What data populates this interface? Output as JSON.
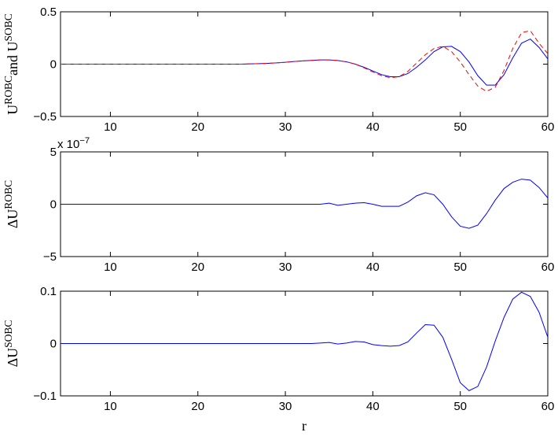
{
  "chart_data": [
    {
      "type": "line",
      "ylabel": [
        {
          "text": "U"
        },
        {
          "text": "ROBC",
          "sup": true
        },
        {
          "text": "and U"
        },
        {
          "text": "SOBC",
          "sup": true
        }
      ],
      "x": [
        4,
        5,
        6,
        7,
        8,
        9,
        10,
        11,
        12,
        13,
        14,
        15,
        16,
        17,
        18,
        19,
        20,
        21,
        22,
        23,
        24,
        25,
        26,
        27,
        28,
        29,
        30,
        31,
        32,
        33,
        34,
        35,
        36,
        37,
        38,
        39,
        40,
        41,
        42,
        43,
        44,
        45,
        46,
        47,
        48,
        49,
        50,
        51,
        52,
        53,
        54,
        55,
        56,
        57,
        58,
        59,
        60
      ],
      "series": [
        {
          "color": "#0000ff",
          "dash": false,
          "values": [
            0,
            0,
            0,
            0,
            0,
            0,
            0,
            0,
            0,
            0,
            0,
            0,
            0,
            0,
            0,
            0,
            0,
            0,
            0,
            0,
            0,
            0,
            0.003,
            0.005,
            0.008,
            0.012,
            0.018,
            0.025,
            0.031,
            0.036,
            0.04,
            0.04,
            0.035,
            0.022,
            0,
            -0.03,
            -0.065,
            -0.1,
            -0.12,
            -0.12,
            -0.09,
            -0.03,
            0.04,
            0.12,
            0.165,
            0.17,
            0.12,
            0.02,
            -0.11,
            -0.2,
            -0.2,
            -0.1,
            0.06,
            0.2,
            0.24,
            0.16,
            0.05
          ]
        },
        {
          "color": "#ff0000",
          "dash": true,
          "values": [
            0,
            0,
            0,
            0,
            0,
            0,
            0,
            0,
            0,
            0,
            0,
            0,
            0,
            0,
            0,
            0,
            0,
            0,
            0,
            0,
            0,
            0,
            0.003,
            0.005,
            0.008,
            0.012,
            0.018,
            0.025,
            0.031,
            0.036,
            0.04,
            0.04,
            0.035,
            0.022,
            0,
            -0.035,
            -0.075,
            -0.11,
            -0.13,
            -0.12,
            -0.07,
            0.01,
            0.09,
            0.15,
            0.17,
            0.12,
            0.02,
            -0.1,
            -0.21,
            -0.26,
            -0.22,
            -0.06,
            0.15,
            0.3,
            0.32,
            0.2,
            0.1
          ]
        }
      ],
      "xlim": [
        4.3,
        60
      ],
      "xticks": [
        10,
        20,
        30,
        40,
        50,
        60
      ],
      "ylim": [
        -0.5,
        0.5
      ],
      "yticks": [
        {
          "value": -0.5,
          "label": "−0.5"
        },
        0,
        0.5
      ]
    },
    {
      "type": "line",
      "ylabel": [
        {
          "text": "ΔU"
        },
        {
          "text": "ROBC",
          "sup": true
        }
      ],
      "scale_label": [
        {
          "text": "x 10"
        },
        {
          "text": "−7",
          "sup": true
        }
      ],
      "x": [
        4,
        5,
        6,
        7,
        8,
        9,
        10,
        11,
        12,
        13,
        14,
        15,
        16,
        17,
        18,
        19,
        20,
        21,
        22,
        23,
        24,
        25,
        26,
        27,
        28,
        29,
        30,
        31,
        32,
        33,
        34,
        35,
        36,
        37,
        38,
        39,
        40,
        41,
        42,
        43,
        44,
        45,
        46,
        47,
        48,
        49,
        50,
        51,
        52,
        53,
        54,
        55,
        56,
        57,
        58,
        59,
        60
      ],
      "series": [
        {
          "color": "#0000ff",
          "dash": false,
          "values": [
            0,
            0,
            0,
            0,
            0,
            0,
            0,
            0,
            0,
            0,
            0,
            0,
            0,
            0,
            0,
            0,
            0,
            0,
            0,
            0,
            0,
            0,
            0,
            0,
            0,
            0,
            0,
            0,
            0,
            0,
            0,
            0.1,
            -0.1,
            0,
            0.1,
            0.15,
            0,
            -0.2,
            -0.2,
            -0.2,
            0.2,
            0.8,
            1.1,
            0.9,
            0,
            -1.2,
            -2.1,
            -2.3,
            -2,
            -0.9,
            0.4,
            1.5,
            2.1,
            2.4,
            2.3,
            1.6,
            0.6
          ]
        }
      ],
      "xlim": [
        4.3,
        60
      ],
      "xticks": [
        10,
        20,
        30,
        40,
        50,
        60
      ],
      "ylim": [
        -5,
        5
      ],
      "yticks": [
        {
          "value": -5,
          "label": "−5"
        },
        0,
        5
      ]
    },
    {
      "type": "line",
      "ylabel": [
        {
          "text": "ΔU"
        },
        {
          "text": "SOBC",
          "sup": true
        }
      ],
      "xlabel": "r",
      "x": [
        4,
        5,
        6,
        7,
        8,
        9,
        10,
        11,
        12,
        13,
        14,
        15,
        16,
        17,
        18,
        19,
        20,
        21,
        22,
        23,
        24,
        25,
        26,
        27,
        28,
        29,
        30,
        31,
        32,
        33,
        34,
        35,
        36,
        37,
        38,
        39,
        40,
        41,
        42,
        43,
        44,
        45,
        46,
        47,
        48,
        49,
        50,
        51,
        52,
        53,
        54,
        55,
        56,
        57,
        58,
        59,
        60
      ],
      "series": [
        {
          "color": "#0000ff",
          "dash": false,
          "values": [
            0,
            0,
            0,
            0,
            0,
            0,
            0,
            0,
            0,
            0,
            0,
            0,
            0,
            0,
            0,
            0,
            0,
            0,
            0,
            0,
            0,
            0,
            0,
            0,
            0,
            0,
            0,
            0,
            0,
            0,
            0.001,
            0.002,
            -0.001,
            0.001,
            0.004,
            0.003,
            -0.002,
            -0.004,
            -0.005,
            -0.004,
            0.003,
            0.02,
            0.036,
            0.035,
            0.012,
            -0.03,
            -0.075,
            -0.09,
            -0.082,
            -0.045,
            0.005,
            0.05,
            0.085,
            0.098,
            0.09,
            0.06,
            0.012
          ]
        }
      ],
      "xlim": [
        4.3,
        60
      ],
      "xticks": [
        10,
        20,
        30,
        40,
        50,
        60
      ],
      "ylim": [
        {
          "value": -0.1,
          "label": "−0.1"
        },
        0.1
      ],
      "yticks": [
        {
          "value": -0.1,
          "label": "−0.1"
        },
        0,
        0.1
      ]
    }
  ]
}
